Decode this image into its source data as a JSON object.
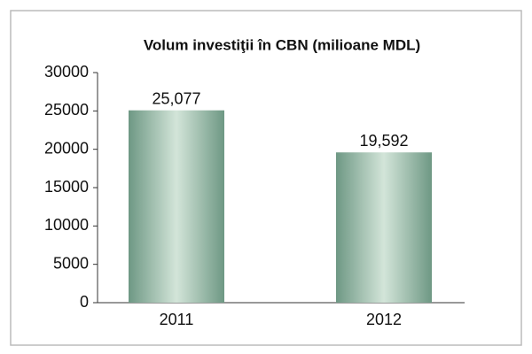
{
  "chart_data": {
    "type": "bar",
    "title": "Volum investiţii în CBN (milioane MDL)",
    "categories": [
      "2011",
      "2012"
    ],
    "values": [
      25077,
      19592
    ],
    "value_labels": [
      "25,077",
      "19,592"
    ],
    "color": "#8fb3a0",
    "ylim": [
      0,
      30000
    ],
    "yticks": [
      0,
      5000,
      10000,
      15000,
      20000,
      25000,
      30000
    ],
    "grid": false
  }
}
